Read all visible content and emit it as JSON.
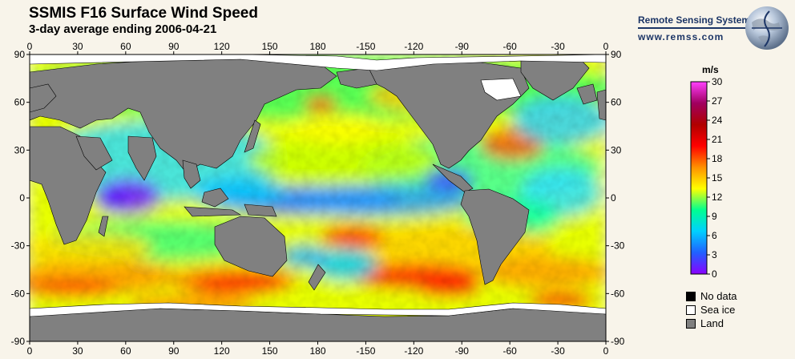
{
  "header": {
    "title": "SSMIS F16 Surface Wind Speed",
    "subtitle": "3-day average ending 2006-04-21"
  },
  "brand": {
    "name": "Remote Sensing Systems",
    "url": "www.remss.com",
    "logo_icon": "globe-logo-icon"
  },
  "map": {
    "lon_ticks": [
      "0",
      "30",
      "60",
      "90",
      "120",
      "150",
      "180",
      "-150",
      "-120",
      "-90",
      "-60",
      "-30",
      "0"
    ],
    "lat_ticks": [
      "90",
      "60",
      "30",
      "0",
      "-30",
      "-60",
      "-90"
    ],
    "colors": {
      "land": "#808080",
      "sea_ice": "#ffffff",
      "no_data": "#000000"
    }
  },
  "colorbar": {
    "unit": "m/s",
    "ticks": [
      "30",
      "27",
      "24",
      "21",
      "18",
      "15",
      "12",
      "9",
      "6",
      "3",
      "0"
    ],
    "stops": [
      "#8a00ff",
      "#2060ff",
      "#00d0ff",
      "#00ff90",
      "#ffff00",
      "#ff9000",
      "#ff0000",
      "#b00000",
      "#a00060",
      "#ff40ff"
    ]
  },
  "legend": {
    "items": [
      {
        "label": "No data",
        "color": "#000000"
      },
      {
        "label": "Sea ice",
        "color": "#ffffff"
      },
      {
        "label": "Land",
        "color": "#808080"
      }
    ]
  }
}
